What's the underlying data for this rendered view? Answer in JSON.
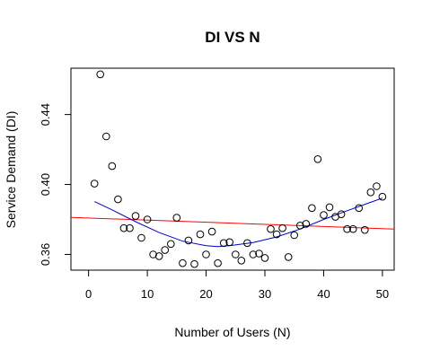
{
  "chart_data": {
    "type": "scatter",
    "title": "DI VS N",
    "xlabel": "Number of Users (N)",
    "ylabel": "Service Demand (DI)",
    "xlim": [
      -3,
      52
    ],
    "ylim": [
      0.351,
      0.4665
    ],
    "x_ticks": [
      0,
      10,
      20,
      30,
      40,
      50
    ],
    "y_ticks": [
      0.36,
      0.4,
      0.44
    ],
    "x_tick_labels": [
      "0",
      "10",
      "20",
      "30",
      "40",
      "50"
    ],
    "y_tick_labels": [
      "0.36",
      "0.40",
      "0.44"
    ],
    "grid": false,
    "legend": "none",
    "points": [
      {
        "x": 1,
        "y": 0.4005
      },
      {
        "x": 2,
        "y": 0.463
      },
      {
        "x": 3,
        "y": 0.4275
      },
      {
        "x": 4,
        "y": 0.4105
      },
      {
        "x": 5,
        "y": 0.3915
      },
      {
        "x": 6,
        "y": 0.375
      },
      {
        "x": 7,
        "y": 0.375
      },
      {
        "x": 8,
        "y": 0.382
      },
      {
        "x": 9,
        "y": 0.3695
      },
      {
        "x": 10,
        "y": 0.38
      },
      {
        "x": 11,
        "y": 0.36
      },
      {
        "x": 12,
        "y": 0.359
      },
      {
        "x": 13,
        "y": 0.3625
      },
      {
        "x": 14,
        "y": 0.366
      },
      {
        "x": 15,
        "y": 0.381
      },
      {
        "x": 16,
        "y": 0.355
      },
      {
        "x": 17,
        "y": 0.368
      },
      {
        "x": 18,
        "y": 0.3545
      },
      {
        "x": 19,
        "y": 0.3715
      },
      {
        "x": 20,
        "y": 0.36
      },
      {
        "x": 21,
        "y": 0.373
      },
      {
        "x": 22,
        "y": 0.355
      },
      {
        "x": 23,
        "y": 0.3665
      },
      {
        "x": 24,
        "y": 0.367
      },
      {
        "x": 25,
        "y": 0.36
      },
      {
        "x": 26,
        "y": 0.3565
      },
      {
        "x": 27,
        "y": 0.3665
      },
      {
        "x": 28,
        "y": 0.36
      },
      {
        "x": 29,
        "y": 0.3605
      },
      {
        "x": 30,
        "y": 0.358
      },
      {
        "x": 31,
        "y": 0.3745
      },
      {
        "x": 32,
        "y": 0.3715
      },
      {
        "x": 33,
        "y": 0.375
      },
      {
        "x": 34,
        "y": 0.3585
      },
      {
        "x": 35,
        "y": 0.371
      },
      {
        "x": 36,
        "y": 0.3765
      },
      {
        "x": 37,
        "y": 0.3775
      },
      {
        "x": 38,
        "y": 0.3865
      },
      {
        "x": 39,
        "y": 0.4145
      },
      {
        "x": 40,
        "y": 0.3825
      },
      {
        "x": 41,
        "y": 0.387
      },
      {
        "x": 42,
        "y": 0.3815
      },
      {
        "x": 43,
        "y": 0.383
      },
      {
        "x": 44,
        "y": 0.3745
      },
      {
        "x": 45,
        "y": 0.3745
      },
      {
        "x": 46,
        "y": 0.3865
      },
      {
        "x": 47,
        "y": 0.374
      },
      {
        "x": 48,
        "y": 0.3955
      },
      {
        "x": 49,
        "y": 0.399
      },
      {
        "x": 50,
        "y": 0.393
      }
    ],
    "fit_lines": [
      {
        "kind": "linear",
        "color": "#ff0000",
        "x": [
          -3,
          52
        ],
        "y": [
          0.3812,
          0.3745
        ]
      },
      {
        "kind": "smooth",
        "color": "#0000cc",
        "x": [
          1,
          4,
          8,
          12,
          16,
          20,
          22,
          24,
          28,
          32,
          36,
          40,
          44,
          48,
          50
        ],
        "y": [
          0.3902,
          0.3855,
          0.3787,
          0.3725,
          0.3676,
          0.365,
          0.3645,
          0.365,
          0.3668,
          0.37,
          0.3745,
          0.38,
          0.385,
          0.3898,
          0.3922
        ]
      }
    ]
  }
}
